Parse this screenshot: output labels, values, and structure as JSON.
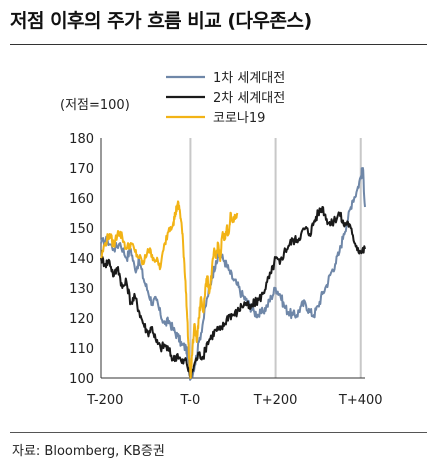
{
  "header": {
    "title": "저점 이후의 주가 흐름 비교 (다우존스)"
  },
  "footer": {
    "source": "자료: Bloomberg, KB증권"
  },
  "chart_data": {
    "type": "line",
    "title": "저점 이후의 주가 흐름 비교 (다우존스)",
    "unit_label": "(저점=100)",
    "xlabel": "",
    "ylabel": "",
    "xlim": [
      -210,
      410
    ],
    "ylim": [
      100,
      180
    ],
    "x_ticks": [
      {
        "value": -200,
        "label": "T-200"
      },
      {
        "value": 0,
        "label": "T-0"
      },
      {
        "value": 200,
        "label": "T+200"
      },
      {
        "value": 400,
        "label": "T+400"
      }
    ],
    "y_ticks": [
      100,
      110,
      120,
      130,
      140,
      150,
      160,
      170,
      180
    ],
    "vertical_gridlines_at": [
      0,
      200,
      400
    ],
    "legend_position": "top",
    "series": [
      {
        "name": "1차 세계대전",
        "color": "#6f87a8",
        "points": [
          [
            -210,
            145
          ],
          [
            -195,
            146
          ],
          [
            -180,
            143
          ],
          [
            -165,
            145
          ],
          [
            -150,
            140
          ],
          [
            -140,
            143
          ],
          [
            -130,
            136
          ],
          [
            -120,
            139
          ],
          [
            -110,
            133
          ],
          [
            -100,
            129
          ],
          [
            -90,
            125
          ],
          [
            -80,
            126
          ],
          [
            -70,
            121
          ],
          [
            -60,
            118
          ],
          [
            -50,
            119
          ],
          [
            -40,
            116
          ],
          [
            -30,
            114
          ],
          [
            -20,
            111
          ],
          [
            -10,
            110
          ],
          [
            -5,
            106
          ],
          [
            0,
            100
          ],
          [
            10,
            104
          ],
          [
            20,
            112
          ],
          [
            30,
            119
          ],
          [
            40,
            127
          ],
          [
            50,
            133
          ],
          [
            60,
            139
          ],
          [
            70,
            141
          ],
          [
            80,
            139
          ],
          [
            90,
            136
          ],
          [
            100,
            133
          ],
          [
            110,
            131
          ],
          [
            120,
            128
          ],
          [
            130,
            126
          ],
          [
            140,
            124
          ],
          [
            150,
            122
          ],
          [
            160,
            121
          ],
          [
            170,
            122
          ],
          [
            180,
            124
          ],
          [
            190,
            127
          ],
          [
            200,
            130
          ],
          [
            210,
            128
          ],
          [
            220,
            124
          ],
          [
            230,
            122
          ],
          [
            240,
            121
          ],
          [
            250,
            121
          ],
          [
            260,
            124
          ],
          [
            270,
            125
          ],
          [
            280,
            122
          ],
          [
            290,
            121
          ],
          [
            300,
            124
          ],
          [
            310,
            128
          ],
          [
            320,
            131
          ],
          [
            330,
            135
          ],
          [
            340,
            138
          ],
          [
            350,
            142
          ],
          [
            360,
            148
          ],
          [
            370,
            153
          ],
          [
            380,
            159
          ],
          [
            390,
            162
          ],
          [
            400,
            167
          ],
          [
            405,
            170
          ],
          [
            410,
            157
          ]
        ]
      },
      {
        "name": "2차 세계대전",
        "color": "#1a1a1a",
        "points": [
          [
            -210,
            140
          ],
          [
            -200,
            138
          ],
          [
            -190,
            139
          ],
          [
            -180,
            134
          ],
          [
            -170,
            137
          ],
          [
            -160,
            130
          ],
          [
            -150,
            132
          ],
          [
            -140,
            125
          ],
          [
            -130,
            127
          ],
          [
            -120,
            122
          ],
          [
            -110,
            118
          ],
          [
            -100,
            115
          ],
          [
            -90,
            117
          ],
          [
            -80,
            112
          ],
          [
            -70,
            110
          ],
          [
            -60,
            111
          ],
          [
            -50,
            109
          ],
          [
            -40,
            106
          ],
          [
            -30,
            108
          ],
          [
            -20,
            105
          ],
          [
            -10,
            106
          ],
          [
            0,
            100
          ],
          [
            10,
            105
          ],
          [
            20,
            108
          ],
          [
            30,
            107
          ],
          [
            40,
            112
          ],
          [
            50,
            114
          ],
          [
            60,
            116
          ],
          [
            70,
            116
          ],
          [
            80,
            118
          ],
          [
            90,
            121
          ],
          [
            100,
            121
          ],
          [
            110,
            122
          ],
          [
            120,
            124
          ],
          [
            130,
            125
          ],
          [
            140,
            123
          ],
          [
            150,
            125
          ],
          [
            160,
            126
          ],
          [
            170,
            128
          ],
          [
            180,
            132
          ],
          [
            190,
            135
          ],
          [
            200,
            140
          ],
          [
            210,
            138
          ],
          [
            220,
            142
          ],
          [
            230,
            144
          ],
          [
            240,
            146
          ],
          [
            250,
            146
          ],
          [
            260,
            148
          ],
          [
            270,
            150
          ],
          [
            280,
            148
          ],
          [
            290,
            152
          ],
          [
            300,
            155
          ],
          [
            310,
            157
          ],
          [
            320,
            153
          ],
          [
            330,
            151
          ],
          [
            340,
            153
          ],
          [
            350,
            155
          ],
          [
            360,
            151
          ],
          [
            370,
            152
          ],
          [
            380,
            148
          ],
          [
            390,
            144
          ],
          [
            400,
            142
          ],
          [
            410,
            143
          ]
        ]
      },
      {
        "name": "코로나19",
        "color": "#f2b316",
        "points": [
          [
            -210,
            140
          ],
          [
            -200,
            145
          ],
          [
            -190,
            148
          ],
          [
            -180,
            144
          ],
          [
            -170,
            149
          ],
          [
            -160,
            147
          ],
          [
            -150,
            143
          ],
          [
            -140,
            145
          ],
          [
            -130,
            142
          ],
          [
            -120,
            140
          ],
          [
            -110,
            138
          ],
          [
            -100,
            143
          ],
          [
            -90,
            141
          ],
          [
            -80,
            139
          ],
          [
            -70,
            137
          ],
          [
            -60,
            145
          ],
          [
            -50,
            150
          ],
          [
            -40,
            152
          ],
          [
            -35,
            155
          ],
          [
            -30,
            158
          ],
          [
            -25,
            156
          ],
          [
            -20,
            150
          ],
          [
            -15,
            140
          ],
          [
            -10,
            128
          ],
          [
            -5,
            112
          ],
          [
            0,
            100
          ],
          [
            5,
            110
          ],
          [
            10,
            118
          ],
          [
            15,
            112
          ],
          [
            20,
            120
          ],
          [
            25,
            127
          ],
          [
            30,
            122
          ],
          [
            35,
            130
          ],
          [
            40,
            133
          ],
          [
            45,
            129
          ],
          [
            50,
            135
          ],
          [
            55,
            142
          ],
          [
            60,
            140
          ],
          [
            65,
            145
          ],
          [
            70,
            139
          ],
          [
            75,
            148
          ],
          [
            80,
            146
          ],
          [
            85,
            150
          ],
          [
            90,
            148
          ],
          [
            95,
            155
          ],
          [
            100,
            152
          ],
          [
            105,
            153
          ],
          [
            110,
            155
          ]
        ]
      }
    ]
  }
}
